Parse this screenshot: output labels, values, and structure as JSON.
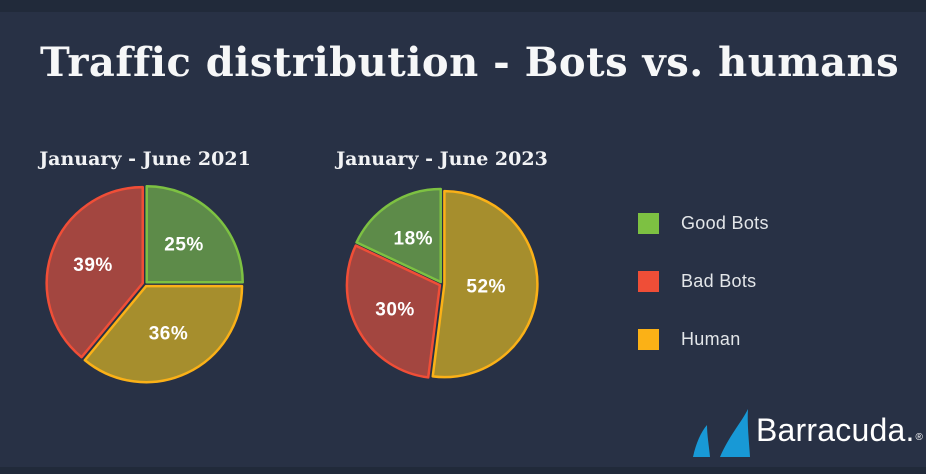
{
  "page": {
    "title": "Traffic distribution - Bots vs. humans"
  },
  "chart_data": [
    {
      "type": "pie",
      "title": "January - June 2021",
      "start_angle_deg": -90,
      "direction": "clockwise",
      "radius": 96,
      "slices": [
        {
          "label": "Good Bots",
          "value": 25,
          "fill": "#5d8b49",
          "stroke": "#7dc142"
        },
        {
          "label": "Human",
          "value": 36,
          "fill": "#a68e2d",
          "stroke": "#fbb117"
        },
        {
          "label": "Bad Bots",
          "value": 39,
          "fill": "#a34640",
          "stroke": "#f04e37"
        }
      ]
    },
    {
      "type": "pie",
      "title": "January - June 2023",
      "start_angle_deg": -90,
      "direction": "clockwise",
      "radius": 93,
      "slices": [
        {
          "label": "Human",
          "value": 52,
          "fill": "#a68e2d",
          "stroke": "#fbb117"
        },
        {
          "label": "Bad Bots",
          "value": 30,
          "fill": "#a34640",
          "stroke": "#f04e37"
        },
        {
          "label": "Good Bots",
          "value": 18,
          "fill": "#5d8b49",
          "stroke": "#7dc142"
        }
      ]
    }
  ],
  "legend": {
    "items": [
      {
        "label": "Good Bots",
        "color": "#7dc142"
      },
      {
        "label": "Bad Bots",
        "color": "#ef4e37"
      },
      {
        "label": "Human",
        "color": "#fbb116"
      }
    ]
  },
  "logo": {
    "text": "Barracuda.",
    "registered_mark": "®",
    "fin_color": "#1899d6"
  },
  "colors": {
    "background": "#283145",
    "edge_strips": "#212a3a",
    "title_text": "#f6f7f8",
    "legend_text": "#e3e6e9"
  }
}
